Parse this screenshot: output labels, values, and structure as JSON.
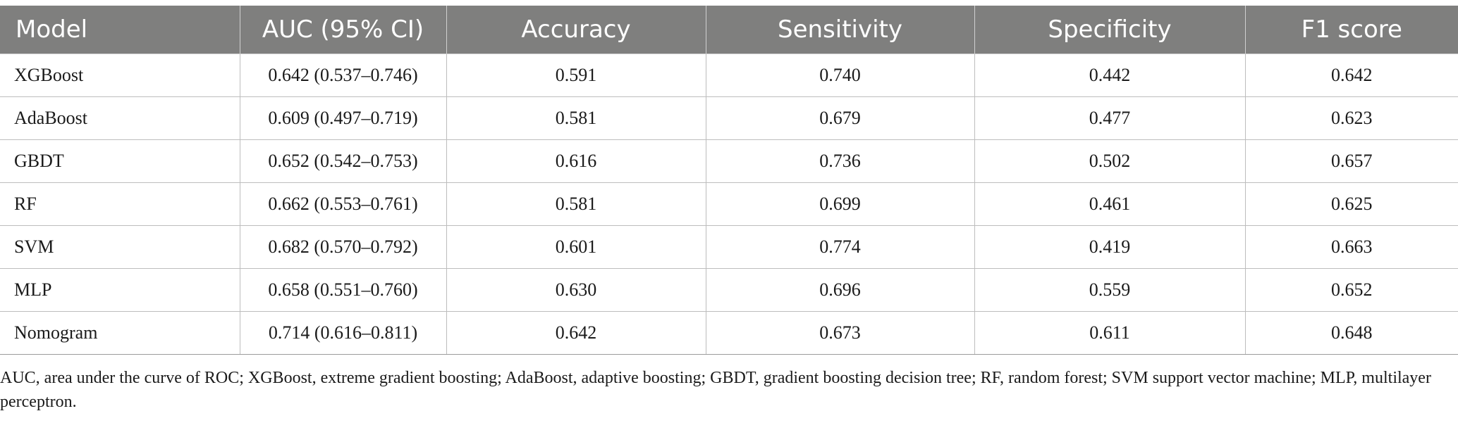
{
  "table": {
    "headers": [
      "Model",
      "AUC (95% CI)",
      "Accuracy",
      "Sensitivity",
      "Specificity",
      "F1 score"
    ],
    "rows": [
      [
        "XGBoost",
        "0.642 (0.537–0.746)",
        "0.591",
        "0.740",
        "0.442",
        "0.642"
      ],
      [
        "AdaBoost",
        "0.609 (0.497–0.719)",
        "0.581",
        "0.679",
        "0.477",
        "0.623"
      ],
      [
        "GBDT",
        "0.652 (0.542–0.753)",
        "0.616",
        "0.736",
        "0.502",
        "0.657"
      ],
      [
        "RF",
        "0.662 (0.553–0.761)",
        "0.581",
        "0.699",
        "0.461",
        "0.625"
      ],
      [
        "SVM",
        "0.682 (0.570–0.792)",
        "0.601",
        "0.774",
        "0.419",
        "0.663"
      ],
      [
        "MLP",
        "0.658 (0.551–0.760)",
        "0.630",
        "0.696",
        "0.559",
        "0.652"
      ],
      [
        "Nomogram",
        "0.714 (0.616–0.811)",
        "0.642",
        "0.673",
        "0.611",
        "0.648"
      ]
    ]
  },
  "footnote": "AUC, area under the curve of ROC; XGBoost, extreme gradient boosting; AdaBoost, adaptive boosting; GBDT, gradient boosting decision tree; RF, random forest; SVM support vector machine; MLP, multilayer perceptron.",
  "colors": {
    "header_bg": "#7f7f7e",
    "header_text": "#ffffff",
    "grid_line": "#bdbdbd"
  }
}
